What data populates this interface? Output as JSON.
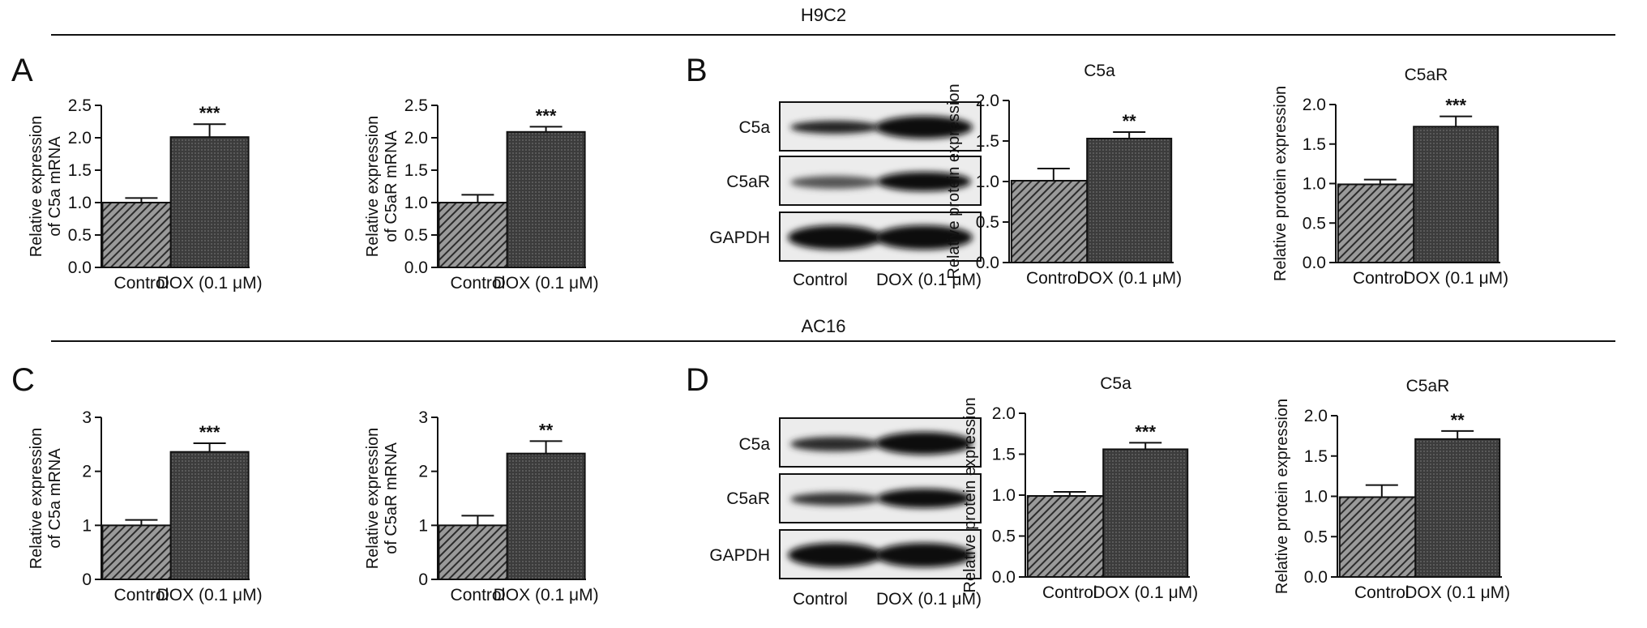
{
  "sections": [
    {
      "title": "H9C2"
    },
    {
      "title": "AC16"
    }
  ],
  "panel_letters": [
    "A",
    "B",
    "C",
    "D"
  ],
  "blots": [
    {
      "rows": [
        "C5a",
        "C5aR",
        "GAPDH"
      ],
      "lanes": [
        "Control",
        "DOX (0.1 μM)"
      ]
    },
    {
      "rows": [
        "C5a",
        "C5aR",
        "GAPDH"
      ],
      "lanes": [
        "Control",
        "DOX (0.1 μM)"
      ]
    }
  ],
  "colors": {
    "control_fill": "#6e6e6e",
    "dox_fill": "#3a3a3a",
    "stroke": "#111111"
  },
  "chart_data": [
    {
      "type": "bar",
      "panel": "A",
      "title": "",
      "ylabel": "Relative expression\nof C5a mRNA",
      "categories": [
        "Control",
        "DOX (0.1 μM)"
      ],
      "values": [
        1.0,
        2.01
      ],
      "errors": [
        0.07,
        0.2
      ],
      "significance": [
        "",
        "***"
      ],
      "ylim": [
        0,
        2.5
      ],
      "yticks": [
        "0.0",
        "0.5",
        "1.0",
        "1.5",
        "2.0",
        "2.5"
      ]
    },
    {
      "type": "bar",
      "panel": "A",
      "title": "",
      "ylabel": "Relative expression\nof C5aR mRNA",
      "categories": [
        "Control",
        "DOX (0.1 μM)"
      ],
      "values": [
        1.0,
        2.09
      ],
      "errors": [
        0.12,
        0.08
      ],
      "significance": [
        "",
        "***"
      ],
      "ylim": [
        0,
        2.5
      ],
      "yticks": [
        "0.0",
        "0.5",
        "1.0",
        "1.5",
        "2.0",
        "2.5"
      ]
    },
    {
      "type": "bar",
      "panel": "B",
      "title": "C5a",
      "ylabel": "Relative protein expression",
      "categories": [
        "Control",
        "DOX (0.1 μM)"
      ],
      "values": [
        1.01,
        1.53
      ],
      "errors": [
        0.15,
        0.08
      ],
      "significance": [
        "",
        "**"
      ],
      "ylim": [
        0,
        2.0
      ],
      "yticks": [
        "0.0",
        "0.5",
        "1.0",
        "1.5",
        "2.0"
      ]
    },
    {
      "type": "bar",
      "panel": "B",
      "title": "C5aR",
      "ylabel": "Relative protein expression",
      "categories": [
        "Control",
        "DOX (0.1 μM)"
      ],
      "values": [
        0.99,
        1.72
      ],
      "errors": [
        0.06,
        0.13
      ],
      "significance": [
        "",
        "***"
      ],
      "ylim": [
        0,
        2.0
      ],
      "yticks": [
        "0.0",
        "0.5",
        "1.0",
        "1.5",
        "2.0"
      ]
    },
    {
      "type": "bar",
      "panel": "C",
      "title": "",
      "ylabel": "Relative expression\nof C5a mRNA",
      "categories": [
        "Control",
        "DOX (0.1 μM)"
      ],
      "values": [
        1.0,
        2.36
      ],
      "errors": [
        0.1,
        0.16
      ],
      "significance": [
        "",
        "***"
      ],
      "ylim": [
        0,
        3
      ],
      "yticks": [
        "0",
        "1",
        "2",
        "3"
      ]
    },
    {
      "type": "bar",
      "panel": "C",
      "title": "",
      "ylabel": "Relative expression\nof C5aR mRNA",
      "categories": [
        "Control",
        "DOX (0.1 μM)"
      ],
      "values": [
        1.0,
        2.33
      ],
      "errors": [
        0.18,
        0.23
      ],
      "significance": [
        "",
        "**"
      ],
      "ylim": [
        0,
        3
      ],
      "yticks": [
        "0",
        "1",
        "2",
        "3"
      ]
    },
    {
      "type": "bar",
      "panel": "D",
      "title": "C5a",
      "ylabel": "Relative protein expression",
      "categories": [
        "Control",
        "DOX (0.1 μM)"
      ],
      "values": [
        0.99,
        1.56
      ],
      "errors": [
        0.05,
        0.08
      ],
      "significance": [
        "",
        "***"
      ],
      "ylim": [
        0,
        2.0
      ],
      "yticks": [
        "0.0",
        "0.5",
        "1.0",
        "1.5",
        "2.0"
      ]
    },
    {
      "type": "bar",
      "panel": "D",
      "title": "C5aR",
      "ylabel": "Relative protein expression",
      "categories": [
        "Control",
        "DOX (0.1 μM)"
      ],
      "values": [
        0.99,
        1.71
      ],
      "errors": [
        0.15,
        0.1
      ],
      "significance": [
        "",
        "**"
      ],
      "ylim": [
        0,
        2.0
      ],
      "yticks": [
        "0.0",
        "0.5",
        "1.0",
        "1.5",
        "2.0"
      ]
    }
  ]
}
